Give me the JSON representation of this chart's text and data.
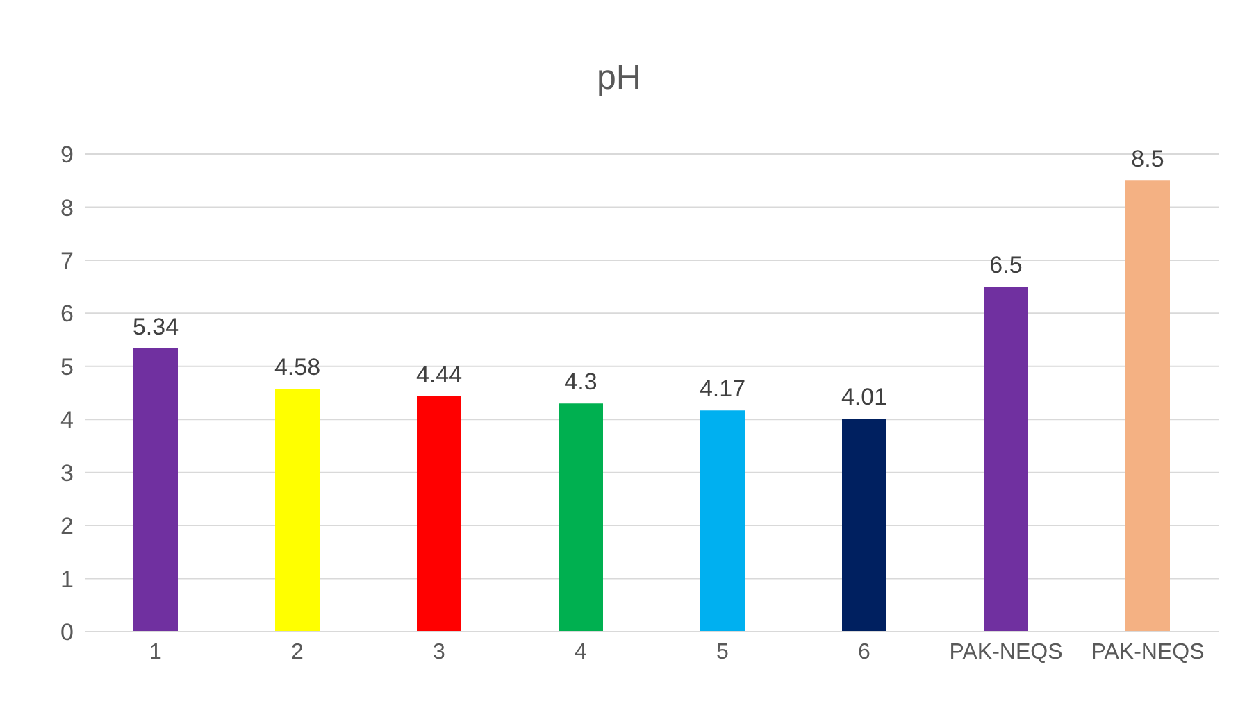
{
  "chart_data": {
    "type": "bar",
    "title": "pH",
    "categories": [
      "1",
      "2",
      "3",
      "4",
      "5",
      "6",
      "PAK-NEQS",
      "PAK-NEQS"
    ],
    "values": [
      5.34,
      4.58,
      4.44,
      4.3,
      4.17,
      4.01,
      6.5,
      8.5
    ],
    "colors": [
      "#7030a0",
      "#ffff00",
      "#ff0000",
      "#00b050",
      "#00b0f0",
      "#002060",
      "#7030a0",
      "#f4b183"
    ],
    "ylim": [
      0,
      9
    ],
    "yticks": [
      0,
      1,
      2,
      3,
      4,
      5,
      6,
      7,
      8,
      9
    ],
    "grid": "y",
    "data_labels": true
  }
}
